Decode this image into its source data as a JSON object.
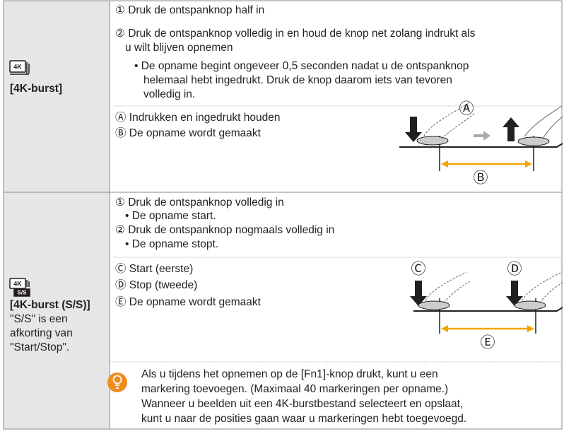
{
  "rows": [
    {
      "label": "[4K-burst]",
      "lines": [
        "① Druk de ontspanknop half in",
        "② Druk de ontspanknop volledig in en houd de knop net zolang indrukt als",
        "u wilt blijven opnemen",
        "• De opname begint ongeveer 0,5 seconden nadat u de ontspanknop",
        "helemaal hebt ingedrukt. Druk de knop daarom iets van tevoren",
        "volledig in."
      ],
      "legend": [
        "Ⓐ Indrukken en ingedrukt houden",
        "Ⓑ De opname wordt gemaakt"
      ],
      "figure": [
        "Ⓐ",
        "Ⓑ"
      ]
    },
    {
      "label": "[4K-burst (S/S)]",
      "note": [
        "\"S/S\" is een",
        "afkorting van",
        "\"Start/Stop\"."
      ],
      "lines": [
        "① Druk de ontspanknop volledig in",
        "• De opname start.",
        "② Druk de ontspanknop nogmaals volledig in",
        "• De opname stopt."
      ],
      "legend": [
        "Ⓒ Start (eerste)",
        "Ⓓ Stop (tweede)",
        "Ⓔ De opname wordt gemaakt"
      ],
      "figure": [
        "Ⓒ",
        "Ⓓ",
        "Ⓔ"
      ]
    }
  ],
  "tip": [
    "Als u tijdens het opnemen op de [Fn1]-knop drukt, kunt u een",
    "markering toevoegen. (Maximaal 40 markeringen per opname.)",
    "Wanneer u beelden uit een 4K-burstbestand selecteert en opslaat,",
    "kunt u naar de posities gaan waar u markeringen hebt toegevoegd."
  ]
}
